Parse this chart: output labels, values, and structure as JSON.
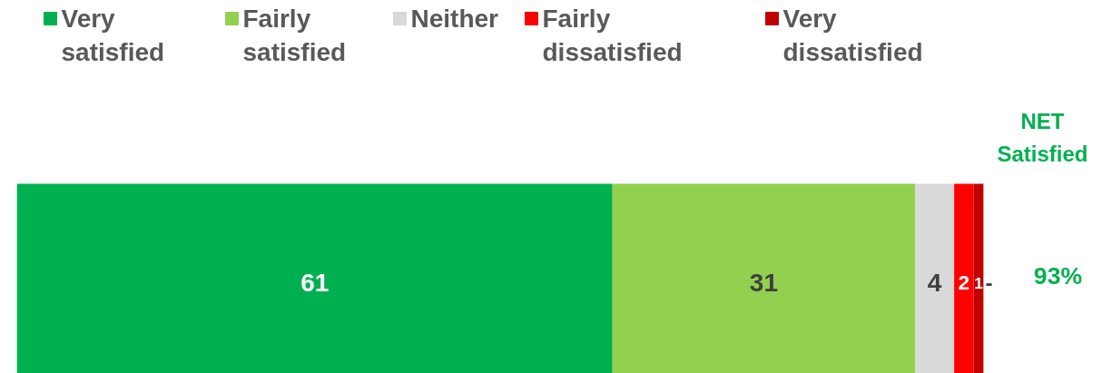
{
  "chart_data": {
    "type": "bar",
    "orientation": "horizontal",
    "stacked": true,
    "categories": [
      null
    ],
    "series": [
      {
        "name": "Very satisfied",
        "color": "#00b050",
        "values": [
          61
        ]
      },
      {
        "name": "Fairly satisfied",
        "color": "#92d050",
        "values": [
          31
        ]
      },
      {
        "name": "Neither",
        "color": "#d9d9d9",
        "values": [
          4
        ]
      },
      {
        "name": "Fairly dissatisfied",
        "color": "#ff0000",
        "values": [
          2
        ]
      },
      {
        "name": "Very dissatisfied",
        "color": "#c00000",
        "values": [
          1
        ]
      }
    ],
    "data_labels": true,
    "legend": "top",
    "tick_labels": false,
    "grid": false,
    "annotations": [
      "-",
      "NET Satisfied",
      "93%"
    ]
  }
}
